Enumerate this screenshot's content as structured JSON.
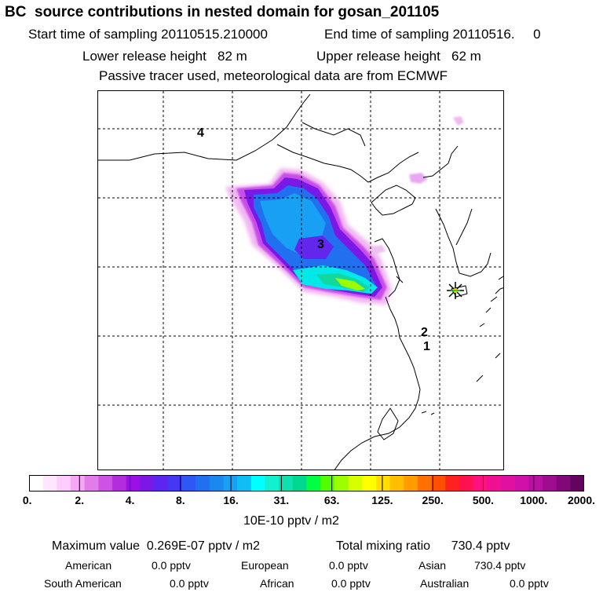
{
  "title": "BC  source contributions in nested domain for gosan_201105",
  "sampling": {
    "start_label": "Start time of sampling 20110515.210000",
    "end_label": "End time of sampling 20110516.     0"
  },
  "release": {
    "lower_label": "Lower release height   82 m",
    "upper_label": "Upper release height   62 m"
  },
  "tracer_note": "Passive tracer used, meteorological data are from ECMWF",
  "map": {
    "region_labels": [
      "4",
      "3",
      "2",
      "1"
    ],
    "receptor_marker": "star-icon",
    "land_color": "#ffffff",
    "coast_color": "#000000"
  },
  "colorbar": {
    "tick_labels": [
      "0.",
      "2.",
      "4.",
      "8.",
      "16.",
      "31.",
      "63.",
      "125.",
      "250.",
      "500.",
      "1000.",
      "2000."
    ],
    "colors": [
      "#ffffff",
      "#ffe6ff",
      "#ffccff",
      "#f5a8f5",
      "#e27ce6",
      "#cf52e6",
      "#b42ce0",
      "#9a10e6",
      "#7a18e8",
      "#5e24f0",
      "#4438f5",
      "#2e58f5",
      "#2070f0",
      "#1a88f0",
      "#18a0f5",
      "#10bef5",
      "#00ffff",
      "#12f0d0",
      "#10e0b0",
      "#00d890",
      "#00ff40",
      "#52ff00",
      "#9cff00",
      "#d8ff00",
      "#ffff00",
      "#ffde00",
      "#ffbf00",
      "#ff9c00",
      "#ff7000",
      "#ff5000",
      "#ff2020",
      "#ff1050",
      "#ff1080",
      "#ee1090",
      "#e210a0",
      "#d010a8",
      "#b810a0",
      "#a00c90",
      "#82087a",
      "#620460"
    ],
    "units": "10E-10 pptv / m2"
  },
  "stats": {
    "max_label": "Maximum value  0.269E-07 pptv / m2",
    "total_label": "Total mixing ratio      730.4 pptv"
  },
  "regions": [
    {
      "name": "American",
      "value": "0.0 pptv"
    },
    {
      "name": "European",
      "value": "0.0 pptv"
    },
    {
      "name": "Asian",
      "value": "730.4 pptv"
    },
    {
      "name": "South American",
      "value": "0.0 pptv"
    },
    {
      "name": "African",
      "value": "0.0 pptv"
    },
    {
      "name": "Australian",
      "value": "0.0 pptv"
    }
  ]
}
